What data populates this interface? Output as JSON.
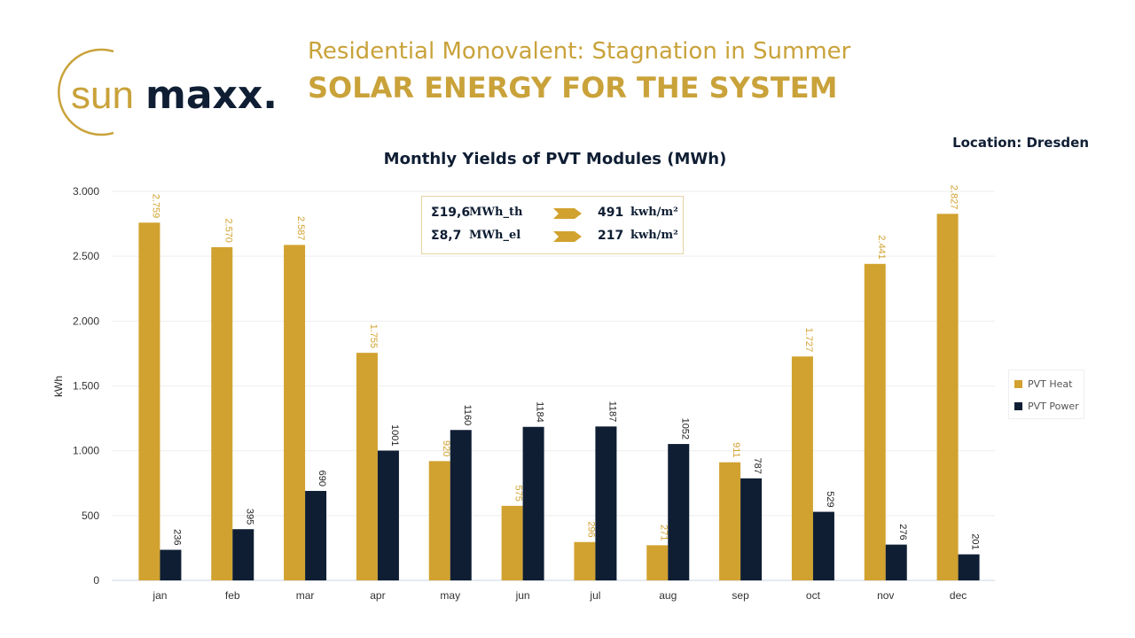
{
  "logo": {
    "text_light": "sun",
    "text_bold": "maxx.",
    "gold": "#c9a23a",
    "navy": "#0f1e33"
  },
  "header": {
    "subtitle": "Residential Monovalent: Stagnation in Summer",
    "title": "SOLAR ENERGY FOR THE SYSTEM",
    "location": "Location: Dresden"
  },
  "summary": [
    {
      "amount": "Σ19,6",
      "unit": "MWh_th",
      "value": "491",
      "value_unit": "kwh/m²"
    },
    {
      "amount": "Σ8,7",
      "unit": "MWh_el",
      "value": "217",
      "value_unit": "kwh/m²"
    }
  ],
  "chart_data": {
    "type": "bar",
    "title": "Monthly Yields of PVT Modules (MWh)",
    "ylabel": "kWh",
    "ylim": [
      0,
      3000
    ],
    "yticks": [
      0,
      500,
      1000,
      1500,
      2000,
      2500,
      3000
    ],
    "ytick_labels": [
      "0",
      "500",
      "1.000",
      "1.500",
      "2.000",
      "2.500",
      "3.000"
    ],
    "grid": true,
    "legend_position": "right",
    "categories": [
      "jan",
      "feb",
      "mar",
      "apr",
      "may",
      "jun",
      "jul",
      "aug",
      "sep",
      "oct",
      "nov",
      "dec"
    ],
    "series": [
      {
        "name": "PVT Heat",
        "color": "#d1a22f",
        "values": [
          2759,
          2570,
          2587,
          1755,
          920,
          575,
          296,
          271,
          911,
          1727,
          2441,
          2827
        ],
        "labels": [
          "2.759",
          "2.570",
          "2.587",
          "1.755",
          "920",
          "575",
          "296",
          "271",
          "911",
          "1.727",
          "2.441",
          "2.827"
        ]
      },
      {
        "name": "PVT Power",
        "color": "#0f1e33",
        "values": [
          236,
          395,
          690,
          1001,
          1160,
          1184,
          1187,
          1052,
          787,
          529,
          276,
          201
        ],
        "labels": [
          "236",
          "395",
          "690",
          "1001",
          "1160",
          "1184",
          "1187",
          "1052",
          "787",
          "529",
          "276",
          "201"
        ]
      }
    ]
  }
}
